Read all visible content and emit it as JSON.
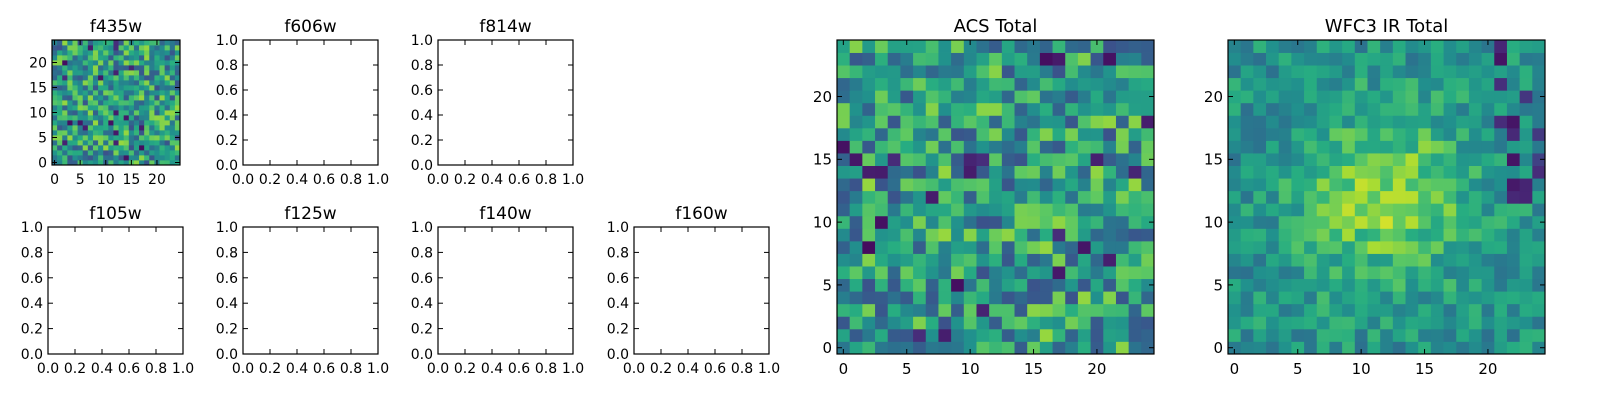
{
  "chart_data": [
    {
      "type": "heatmap",
      "title": "f435w",
      "xlim": [
        -0.5,
        24.5
      ],
      "ylim": [
        -0.5,
        24.5
      ],
      "xticks": [
        0,
        5,
        10,
        15,
        20
      ],
      "yticks": [
        0,
        5,
        10,
        15,
        20
      ],
      "xtick_labels": [
        "0",
        "5",
        "10",
        "15",
        "20"
      ],
      "ytick_labels": [
        "0",
        "5",
        "10",
        "15",
        "20"
      ],
      "colormap": "viridis",
      "grid_size": [
        25,
        25
      ],
      "seed": 11
    },
    {
      "type": "heatmap",
      "title": "f606w",
      "xlim": [
        0,
        1
      ],
      "ylim": [
        0,
        1
      ],
      "xticks": [
        0,
        0.2,
        0.4,
        0.6,
        0.8,
        1.0
      ],
      "yticks": [
        0,
        0.2,
        0.4,
        0.6,
        0.8,
        1.0
      ],
      "xtick_labels": [
        "0.0",
        "0.2",
        "0.4",
        "0.6",
        "0.8",
        "1.0"
      ],
      "ytick_labels": [
        "0.0",
        "0.2",
        "0.4",
        "0.6",
        "0.8",
        "1.0"
      ]
    },
    {
      "type": "heatmap",
      "title": "f814w",
      "xlim": [
        0,
        1
      ],
      "ylim": [
        0,
        1
      ],
      "xticks": [
        0,
        0.2,
        0.4,
        0.6,
        0.8,
        1.0
      ],
      "yticks": [
        0,
        0.2,
        0.4,
        0.6,
        0.8,
        1.0
      ],
      "xtick_labels": [
        "0.0",
        "0.2",
        "0.4",
        "0.6",
        "0.8",
        "1.0"
      ],
      "ytick_labels": [
        "0.0",
        "0.2",
        "0.4",
        "0.6",
        "0.8",
        "1.0"
      ]
    },
    {
      "type": "heatmap",
      "title": "f105w",
      "xlim": [
        0,
        1
      ],
      "ylim": [
        0,
        1
      ],
      "xticks": [
        0,
        0.2,
        0.4,
        0.6,
        0.8,
        1.0
      ],
      "yticks": [
        0,
        0.2,
        0.4,
        0.6,
        0.8,
        1.0
      ],
      "xtick_labels": [
        "0.0",
        "0.2",
        "0.4",
        "0.6",
        "0.8",
        "1.0"
      ],
      "ytick_labels": [
        "0.0",
        "0.2",
        "0.4",
        "0.6",
        "0.8",
        "1.0"
      ]
    },
    {
      "type": "heatmap",
      "title": "f125w",
      "xlim": [
        0,
        1
      ],
      "ylim": [
        0,
        1
      ],
      "xticks": [
        0,
        0.2,
        0.4,
        0.6,
        0.8,
        1.0
      ],
      "yticks": [
        0,
        0.2,
        0.4,
        0.6,
        0.8,
        1.0
      ],
      "xtick_labels": [
        "0.0",
        "0.2",
        "0.4",
        "0.6",
        "0.8",
        "1.0"
      ],
      "ytick_labels": [
        "0.0",
        "0.2",
        "0.4",
        "0.6",
        "0.8",
        "1.0"
      ]
    },
    {
      "type": "heatmap",
      "title": "f140w",
      "xlim": [
        0,
        1
      ],
      "ylim": [
        0,
        1
      ],
      "xticks": [
        0,
        0.2,
        0.4,
        0.6,
        0.8,
        1.0
      ],
      "yticks": [
        0,
        0.2,
        0.4,
        0.6,
        0.8,
        1.0
      ],
      "xtick_labels": [
        "0.0",
        "0.2",
        "0.4",
        "0.6",
        "0.8",
        "1.0"
      ],
      "ytick_labels": [
        "0.0",
        "0.2",
        "0.4",
        "0.6",
        "0.8",
        "1.0"
      ]
    },
    {
      "type": "heatmap",
      "title": "f160w",
      "xlim": [
        0,
        1
      ],
      "ylim": [
        0,
        1
      ],
      "xticks": [
        0,
        0.2,
        0.4,
        0.6,
        0.8,
        1.0
      ],
      "yticks": [
        0,
        0.2,
        0.4,
        0.6,
        0.8,
        1.0
      ],
      "xtick_labels": [
        "0.0",
        "0.2",
        "0.4",
        "0.6",
        "0.8",
        "1.0"
      ],
      "ytick_labels": [
        "0.0",
        "0.2",
        "0.4",
        "0.6",
        "0.8",
        "1.0"
      ]
    },
    {
      "type": "heatmap",
      "title": "ACS Total",
      "xlim": [
        -0.5,
        24.5
      ],
      "ylim": [
        -0.5,
        24.5
      ],
      "xticks": [
        0,
        5,
        10,
        15,
        20
      ],
      "yticks": [
        0,
        5,
        10,
        15,
        20
      ],
      "xtick_labels": [
        "0",
        "5",
        "10",
        "15",
        "20"
      ],
      "ytick_labels": [
        "0",
        "5",
        "10",
        "15",
        "20"
      ],
      "colormap": "viridis",
      "grid_size": [
        25,
        25
      ],
      "seed": 23
    },
    {
      "type": "heatmap",
      "title": "WFC3 IR Total",
      "xlim": [
        -0.5,
        24.5
      ],
      "ylim": [
        -0.5,
        24.5
      ],
      "xticks": [
        0,
        5,
        10,
        15,
        20
      ],
      "yticks": [
        0,
        5,
        10,
        15,
        20
      ],
      "xtick_labels": [
        "0",
        "5",
        "10",
        "15",
        "20"
      ],
      "ytick_labels": [
        "0",
        "5",
        "10",
        "15",
        "20"
      ],
      "colormap": "viridis",
      "grid_size": [
        25,
        25
      ],
      "seed": 37
    }
  ]
}
